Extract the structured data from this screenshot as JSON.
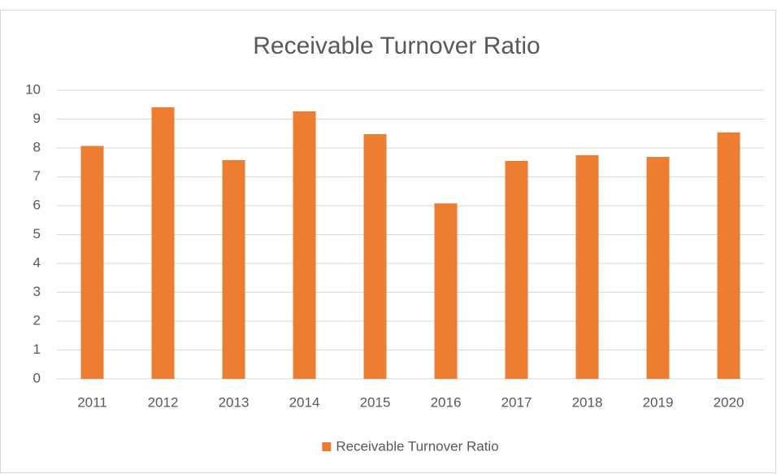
{
  "chart_data": {
    "type": "bar",
    "title": "Receivable Turnover Ratio",
    "categories": [
      "2011",
      "2012",
      "2013",
      "2014",
      "2015",
      "2016",
      "2017",
      "2018",
      "2019",
      "2020"
    ],
    "series": [
      {
        "name": "Receivable Turnover Ratio",
        "color": "#ed7d31",
        "values": [
          8.07,
          9.41,
          7.58,
          9.27,
          8.48,
          6.08,
          7.55,
          7.75,
          7.69,
          8.54
        ]
      }
    ],
    "ylim": [
      0,
      10
    ],
    "yticks": [
      0,
      1,
      2,
      3,
      4,
      5,
      6,
      7,
      8,
      9,
      10
    ],
    "grid": true,
    "legend": "bottom"
  }
}
